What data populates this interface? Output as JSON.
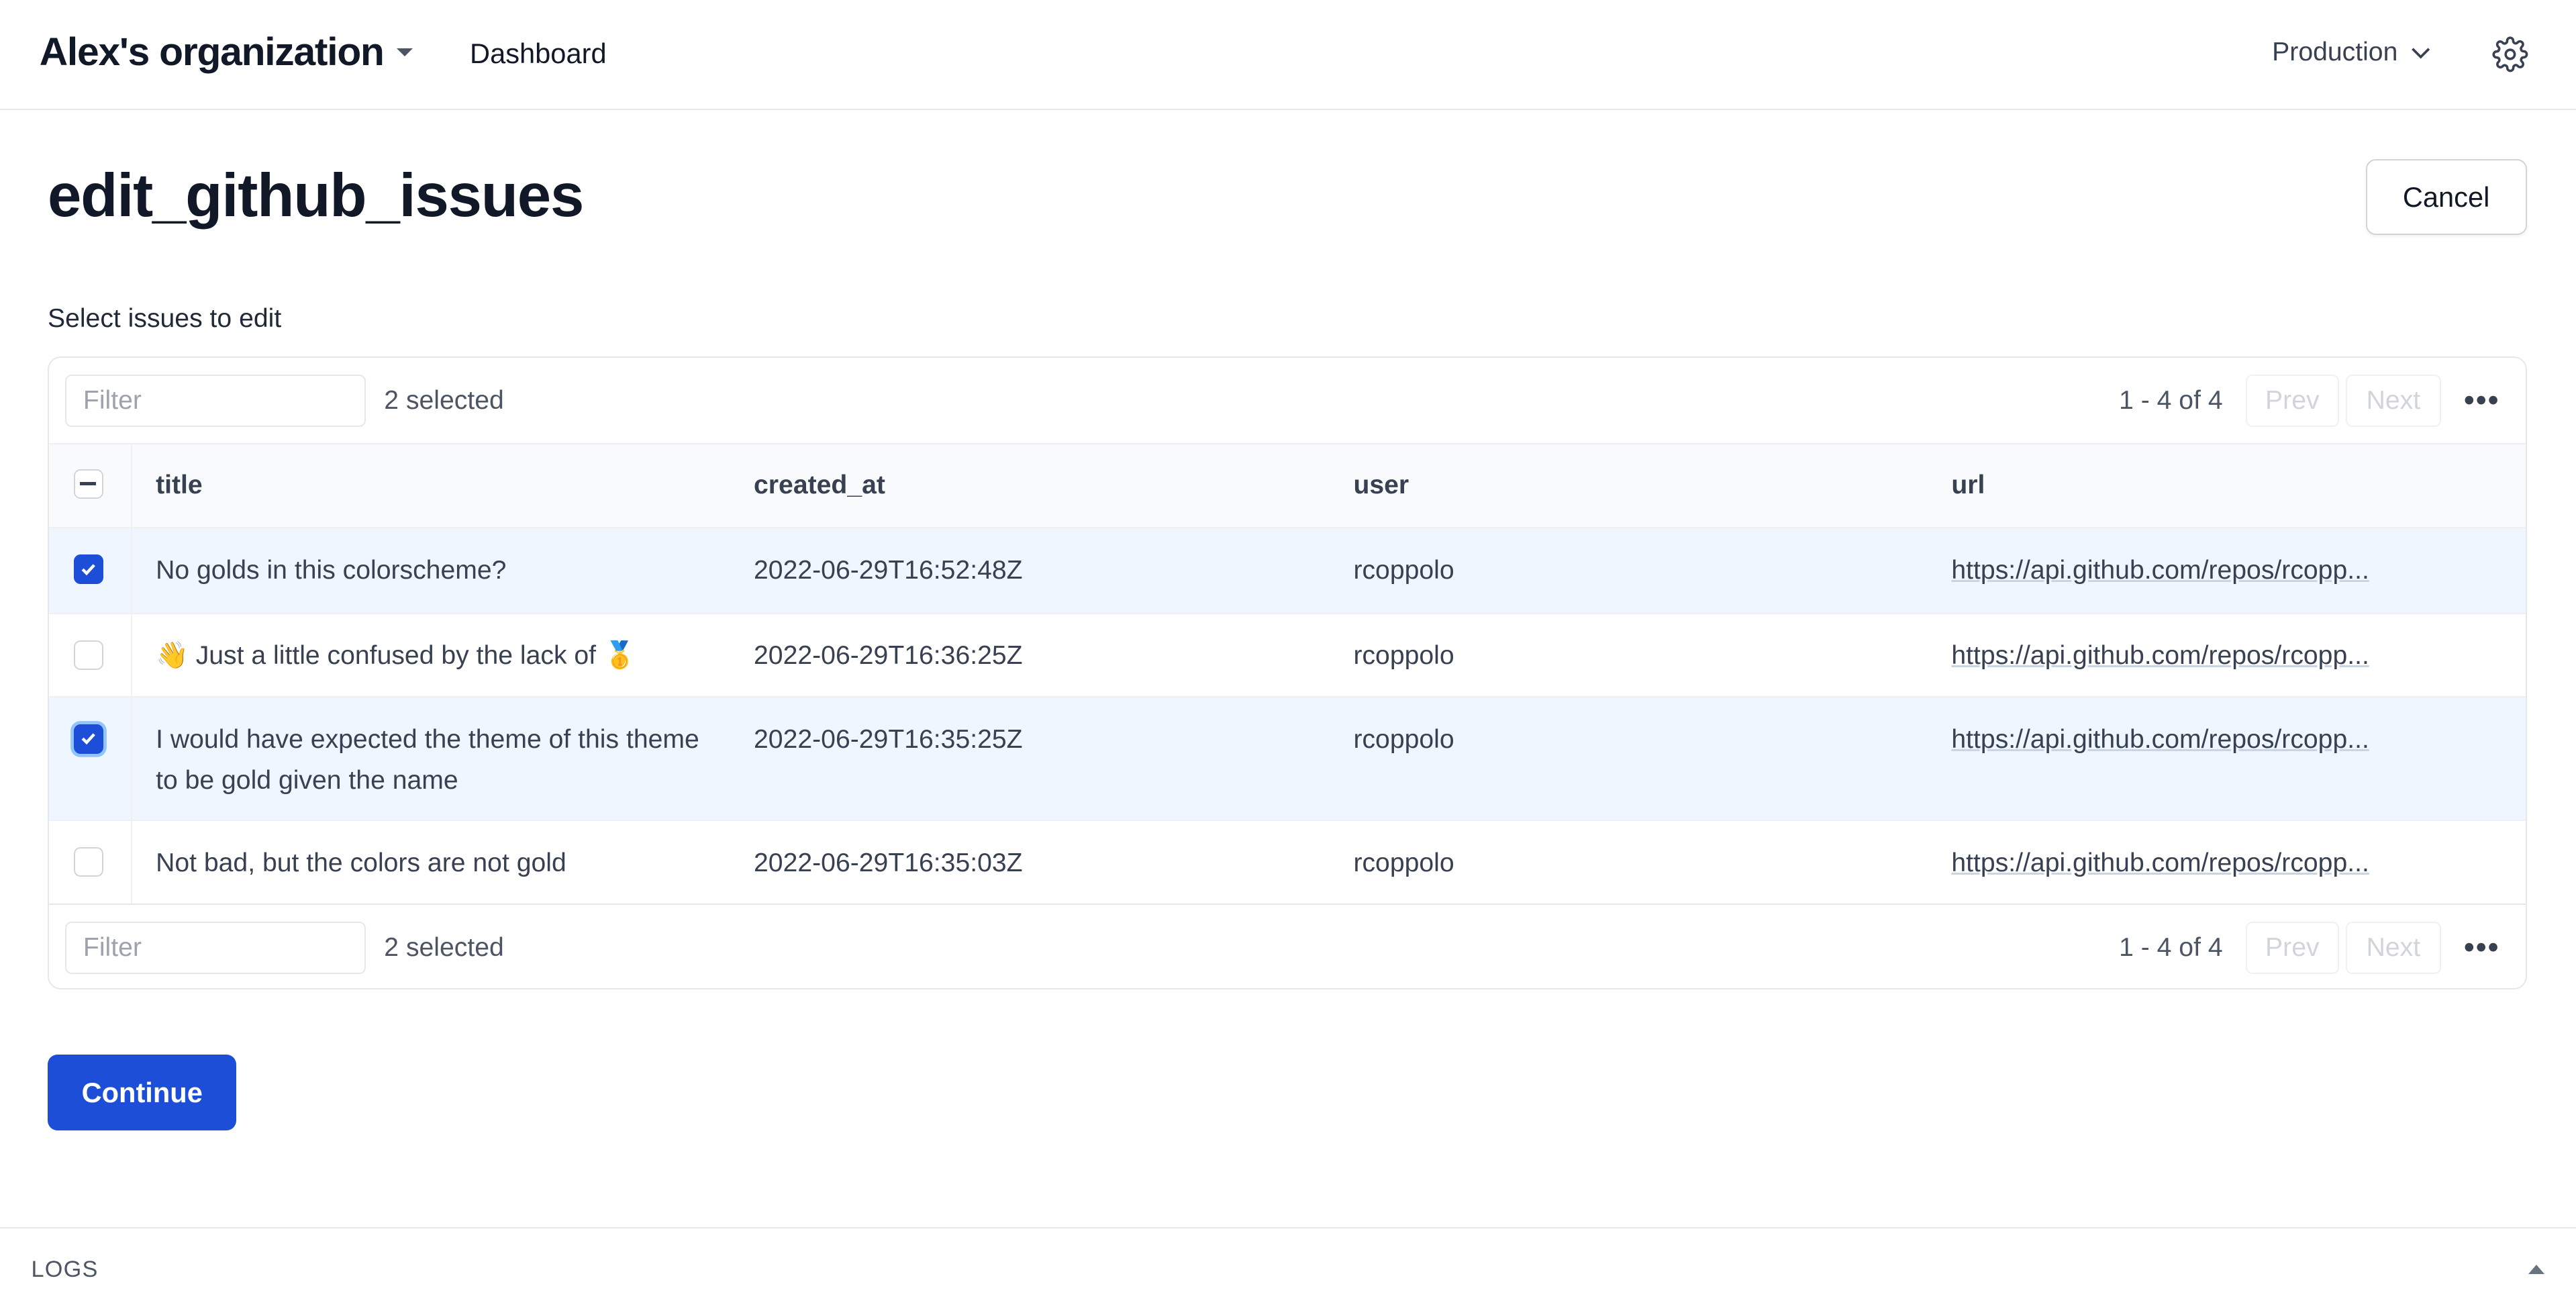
{
  "header": {
    "org": "Alex's organization",
    "nav": "Dashboard",
    "environment": "Production"
  },
  "page": {
    "title": "edit_github_issues",
    "cancel": "Cancel",
    "label": "Select issues to edit",
    "continue": "Continue"
  },
  "table": {
    "filter_placeholder": "Filter",
    "selected": "2 selected",
    "range": "1 - 4 of 4",
    "prev": "Prev",
    "next": "Next",
    "columns": [
      "title",
      "created_at",
      "user",
      "url"
    ],
    "rows": [
      {
        "selected": true,
        "title": "No golds in this colorscheme?",
        "created_at": "2022-06-29T16:52:48Z",
        "user": "rcoppolo",
        "url": "https://api.github.com/repos/rcopp..."
      },
      {
        "selected": false,
        "title": "👋 Just a little confused by the lack of 🥇",
        "created_at": "2022-06-29T16:36:25Z",
        "user": "rcoppolo",
        "url": "https://api.github.com/repos/rcopp..."
      },
      {
        "selected": true,
        "title": "I would have expected the theme of this theme to be gold given the name",
        "created_at": "2022-06-29T16:35:25Z",
        "user": "rcoppolo",
        "url": "https://api.github.com/repos/rcopp..."
      },
      {
        "selected": false,
        "title": "Not bad, but the colors are not gold",
        "created_at": "2022-06-29T16:35:03Z",
        "user": "rcoppolo",
        "url": "https://api.github.com/repos/rcopp..."
      }
    ]
  },
  "logs": {
    "label": "LOGS"
  },
  "colors": {
    "accent": "#1d4ed8",
    "selected_row": "#eff6ff"
  }
}
